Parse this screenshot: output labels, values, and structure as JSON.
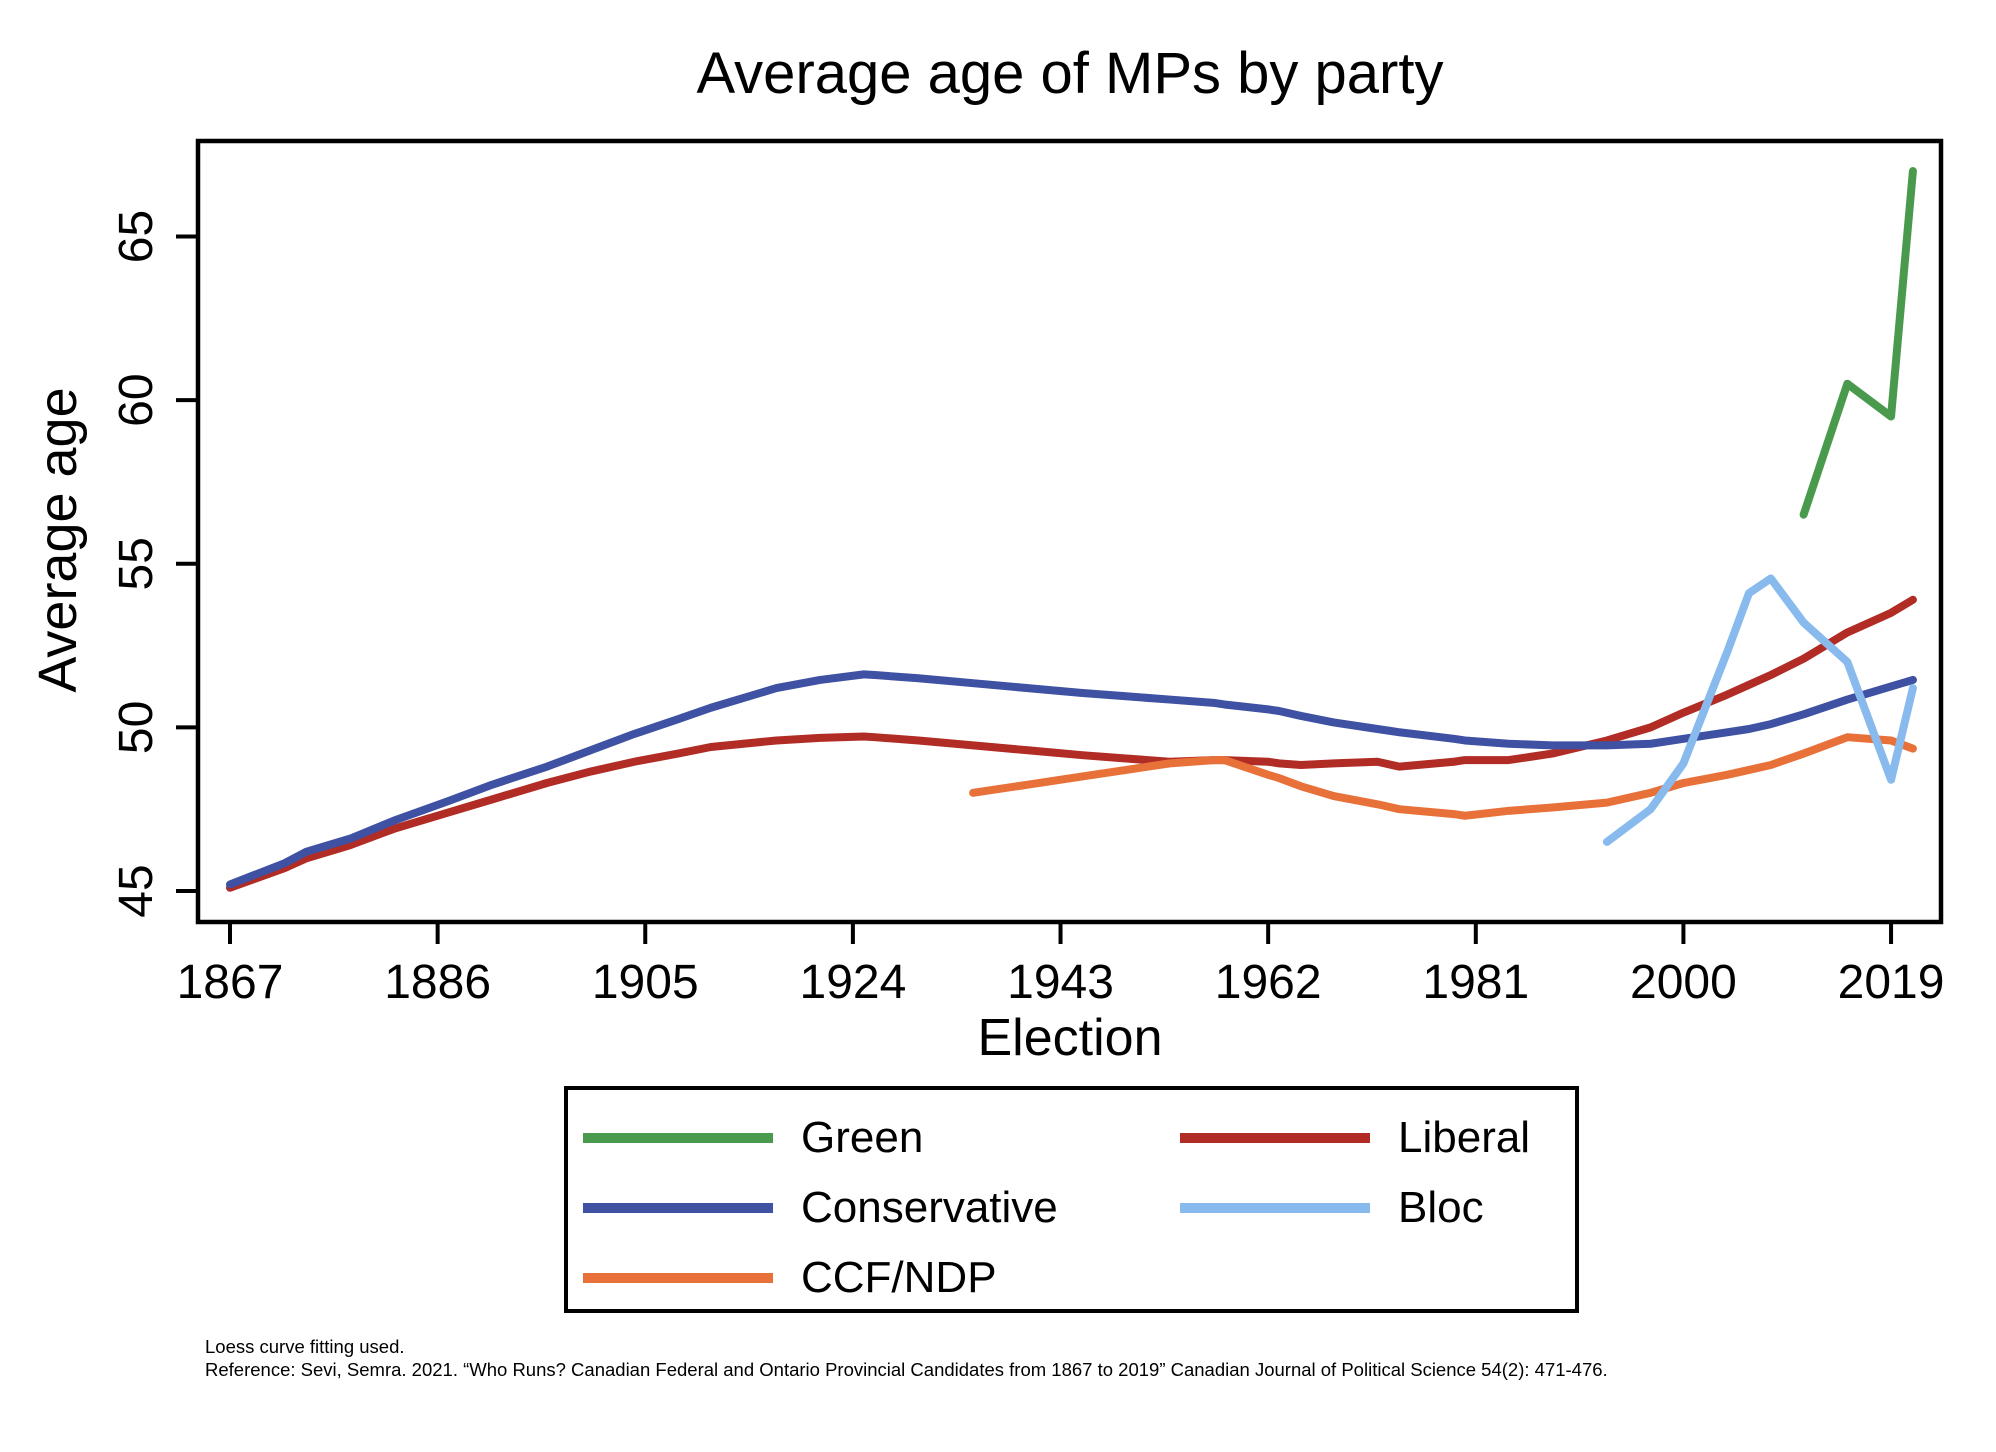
{
  "title": "Average age of MPs by party",
  "y_axis": {
    "label": "Average age"
  },
  "x_axis": {
    "label": "Election"
  },
  "legend": {
    "position": "bottom",
    "items": [
      {
        "label": "Green",
        "color": "#4a9a4d"
      },
      {
        "label": "Conservative",
        "color": "#3e51a2"
      },
      {
        "label": "CCF/NDP",
        "color": "#e87139"
      },
      {
        "label": "Liberal",
        "color": "#b12c25"
      },
      {
        "label": "Bloc",
        "color": "#88baee"
      }
    ]
  },
  "notes": {
    "line1": "Loess curve fitting used.",
    "line2": "Reference: Sevi, Semra. 2021. “Who Runs? Canadian Federal and Ontario Provincial Candidates from 1867 to 2019” Canadian Journal of Political Science 54(2): 471-476."
  },
  "chart_data": {
    "type": "line",
    "title": "Average age of MPs by party",
    "xlabel": "Election",
    "ylabel": "Average age",
    "x_ticks": [
      1867,
      1886,
      1905,
      1924,
      1943,
      1962,
      1981,
      2000,
      2019
    ],
    "y_ticks": [
      45,
      50,
      55,
      60,
      65
    ],
    "xlim": [
      1864,
      2024
    ],
    "ylim": [
      44,
      68
    ],
    "grid": false,
    "legend_position": "below-plot",
    "smoothing_note": "Loess curve fitting used.",
    "series": [
      {
        "name": "Liberal",
        "color": "#b12c25",
        "x": [
          1867,
          1872,
          1874,
          1878,
          1882,
          1887,
          1891,
          1896,
          1900,
          1904,
          1908,
          1911,
          1917,
          1921,
          1925,
          1926,
          1930,
          1935,
          1940,
          1945,
          1949,
          1953,
          1957,
          1958,
          1962,
          1963,
          1965,
          1968,
          1972,
          1974,
          1979,
          1980,
          1984,
          1988,
          1993,
          1997,
          2000,
          2004,
          2006,
          2008,
          2011,
          2015,
          2019,
          2021
        ],
        "values": [
          45.1,
          45.7,
          46.0,
          46.4,
          46.9,
          47.4,
          47.8,
          48.3,
          48.65,
          48.95,
          49.2,
          49.4,
          49.6,
          49.68,
          49.72,
          49.7,
          49.6,
          49.45,
          49.3,
          49.15,
          49.05,
          48.95,
          49.0,
          49.0,
          48.95,
          48.9,
          48.85,
          48.9,
          48.95,
          48.8,
          48.95,
          49.0,
          49.0,
          49.2,
          49.6,
          50.0,
          50.45,
          51.0,
          51.3,
          51.6,
          52.1,
          52.9,
          53.5,
          53.9
        ]
      },
      {
        "name": "Conservative",
        "color": "#3e51a2",
        "x": [
          1867,
          1872,
          1874,
          1878,
          1882,
          1887,
          1891,
          1896,
          1900,
          1904,
          1908,
          1911,
          1917,
          1921,
          1925,
          1926,
          1930,
          1935,
          1940,
          1945,
          1949,
          1953,
          1957,
          1958,
          1962,
          1963,
          1965,
          1968,
          1972,
          1974,
          1979,
          1980,
          1984,
          1988,
          1993,
          1997,
          2000,
          2004,
          2006,
          2008,
          2011,
          2015,
          2019,
          2021
        ],
        "values": [
          45.2,
          45.85,
          46.2,
          46.6,
          47.15,
          47.75,
          48.25,
          48.8,
          49.3,
          49.8,
          50.25,
          50.6,
          51.2,
          51.45,
          51.62,
          51.6,
          51.5,
          51.35,
          51.2,
          51.05,
          50.95,
          50.85,
          50.75,
          50.7,
          50.55,
          50.5,
          50.35,
          50.15,
          49.95,
          49.85,
          49.65,
          49.6,
          49.5,
          49.45,
          49.45,
          49.5,
          49.65,
          49.85,
          49.95,
          50.1,
          50.4,
          50.85,
          51.25,
          51.45
        ]
      },
      {
        "name": "CCF/NDP",
        "color": "#e87139",
        "x": [
          1935,
          1940,
          1945,
          1949,
          1953,
          1957,
          1958,
          1962,
          1963,
          1965,
          1968,
          1972,
          1974,
          1979,
          1980,
          1984,
          1988,
          1993,
          1997,
          2000,
          2004,
          2006,
          2008,
          2011,
          2015,
          2019,
          2021
        ],
        "values": [
          48.0,
          48.25,
          48.5,
          48.7,
          48.9,
          49.0,
          49.0,
          48.55,
          48.45,
          48.2,
          47.9,
          47.65,
          47.5,
          47.35,
          47.3,
          47.45,
          47.55,
          47.7,
          48.0,
          48.3,
          48.55,
          48.7,
          48.85,
          49.2,
          49.7,
          49.6,
          49.35
        ]
      },
      {
        "name": "Bloc",
        "color": "#88baee",
        "x": [
          1993,
          1997,
          2000,
          2004,
          2006,
          2008,
          2011,
          2015,
          2019,
          2021
        ],
        "values": [
          46.5,
          47.5,
          48.9,
          52.3,
          54.1,
          54.55,
          53.2,
          52.0,
          48.4,
          51.2
        ]
      },
      {
        "name": "Green",
        "color": "#4a9a4d",
        "x": [
          2011,
          2015,
          2019,
          2021
        ],
        "values": [
          56.5,
          60.5,
          59.5,
          67.0
        ]
      }
    ]
  }
}
